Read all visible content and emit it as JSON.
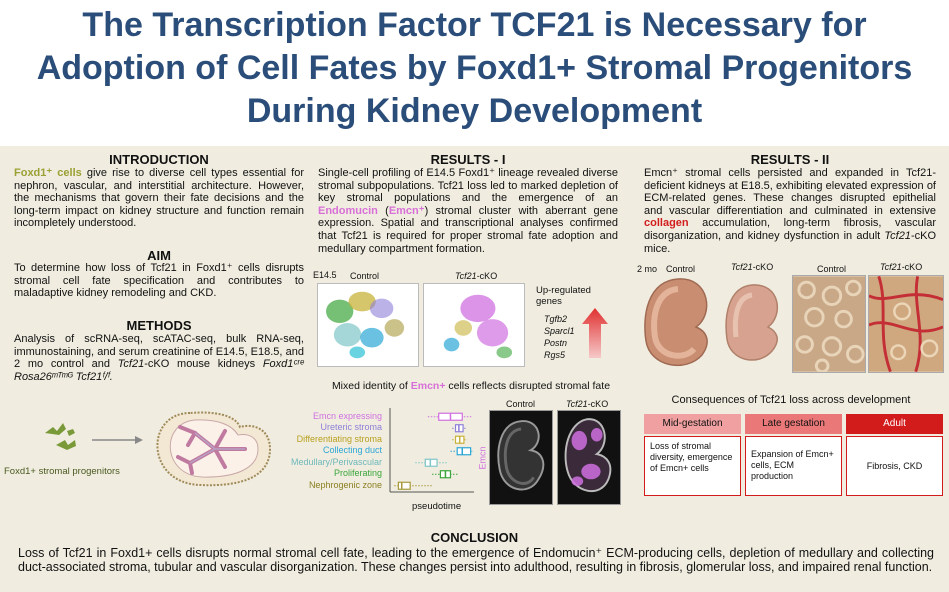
{
  "title": "The Transcription Factor TCF21 is Necessary for Adoption of Cell Fates by Foxd1+ Stromal Progenitors During Kidney Development",
  "introduction": {
    "heading": "INTRODUCTION",
    "lead": "Foxd1⁺ cells",
    "text": " give rise to diverse cell types essential for nephron, vascular, and interstitial architecture. However, the mechanisms that govern their fate decisions and the long-term impact on kidney structure and function remain incompletely understood."
  },
  "aim": {
    "heading": "AIM",
    "text": "To determine how loss of Tcf21 in Foxd1⁺ cells disrupts stromal cell fate specification and contributes to maladaptive kidney remodeling and CKD."
  },
  "methods": {
    "heading": "METHODS",
    "text": "Analysis of scRNA-seq, scATAC-seq, bulk RNA-seq, immunostaining, and serum creatinine of E14.5, E18.5, and 2 mo control and ",
    "cko": "Tcf21",
    "text2": "-cKO mouse kidneys ",
    "genotype": "Foxd1ᶜʳᵉ Rosa26ᵐᵀᵐᴳ Tcf21ᶠ/ᶠ."
  },
  "schematic": {
    "label": "Foxd1+ stromal progenitors"
  },
  "results1": {
    "heading": "RESULTS - I",
    "text_a": "Single-cell profiling of E14.5 Foxd1⁺ lineage revealed diverse stromal subpopulations. Tcf21 loss led to marked depletion of key stromal populations and the emergence of an ",
    "endomucin": "Endomucin",
    "paren_open": " (",
    "emcn": "Emcn⁺",
    "text_b": ") stromal cluster with aberrant gene expression. Spatial and transcriptional analyses confirmed that Tcf21 is required for proper stromal fate adoption and medullary compartment formation.",
    "umap_stage": "E14.5",
    "umap_control": "Control",
    "umap_cko_a": "Tcf21",
    "umap_cko_b": "-cKO",
    "upregulated_label": "Up-regulated genes",
    "genes": [
      "Tgfb2",
      "Sparcl1",
      "Postn",
      "Rgs5"
    ],
    "mixed_title_a": "Mixed identity of ",
    "mixed_title_emcn": "Emcn+",
    "mixed_title_b": " cells reflects disrupted stromal fate",
    "pseudotime_label": "pseudotime",
    "emcn_axis": "Emcn",
    "histo_control": "Control",
    "histo_cko_a": "Tcf21",
    "histo_cko_b": "-cKO"
  },
  "chart_data": {
    "type": "boxplot",
    "xlabel": "pseudotime",
    "categories": [
      "Emcn expressing",
      "Ureteric stroma",
      "Differentiating stroma",
      "Collecting duct",
      "Medullary/Perivascular",
      "Proliferating",
      "Nephrogenic zone"
    ],
    "colors": [
      "#d070e0",
      "#8e7fd8",
      "#c7b23a",
      "#2ba6d6",
      "#7fc6c8",
      "#3aa53a",
      "#a69a3a"
    ],
    "boxes": [
      {
        "q1": 0.58,
        "median": 0.72,
        "q3": 0.86,
        "min": 0.45,
        "max": 0.97
      },
      {
        "q1": 0.78,
        "median": 0.82,
        "q3": 0.87,
        "min": 0.74,
        "max": 0.9
      },
      {
        "q1": 0.78,
        "median": 0.83,
        "q3": 0.88,
        "min": 0.74,
        "max": 0.92
      },
      {
        "q1": 0.8,
        "median": 0.86,
        "q3": 0.96,
        "min": 0.72,
        "max": 0.98
      },
      {
        "q1": 0.42,
        "median": 0.48,
        "q3": 0.56,
        "min": 0.3,
        "max": 0.68
      },
      {
        "q1": 0.6,
        "median": 0.66,
        "q3": 0.72,
        "min": 0.5,
        "max": 0.82
      },
      {
        "q1": 0.1,
        "median": 0.14,
        "q3": 0.24,
        "min": 0.05,
        "max": 0.5
      }
    ]
  },
  "results2": {
    "heading": "RESULTS - II",
    "text_a": "Emcn⁺ stromal cells persisted and expanded in Tcf21-deficient kidneys at E18.5, exhibiting elevated expression of ECM-related genes. These changes disrupted epithelial and vascular differentiation and culminated in extensive ",
    "collagen": "collagen",
    "text_b": " accumulation, long-term fibrosis, vascular disorganization, and kidney dysfunction in adult ",
    "cko": "Tcf21",
    "text_c": "-cKO mice.",
    "img_age": "2 mo",
    "img_control": "Control",
    "img_cko_a": "Tcf21",
    "img_cko_b": "-cKO",
    "img_control2": "Control",
    "img_cko2_a": "Tcf21",
    "img_cko2_b": "-cKO",
    "consequences_title": "Consequences of Tcf21 loss across development",
    "columns": [
      {
        "head": "Mid-gestation",
        "body": "Loss of stromal diversity, emergence of Emcn+ cells"
      },
      {
        "head": "Late gestation",
        "body": "Expansion of Emcn+ cells, ECM production"
      },
      {
        "head": "Adult",
        "body": "Fibrosis, CKD"
      }
    ]
  },
  "conclusion": {
    "heading": "CONCLUSION",
    "text": "Loss of Tcf21 in Foxd1+ cells disrupts normal stromal cell fate, leading to the emergence of Endomucin⁺ ECM-producing cells, depletion of medullary and collecting duct-associated stroma, tubular and vascular disorganization. These changes persist into adulthood, resulting in fibrosis, glomerular loss, and impaired renal function."
  }
}
